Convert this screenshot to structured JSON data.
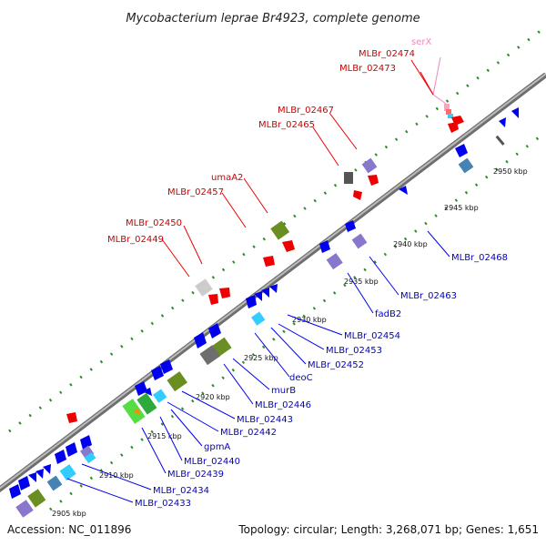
{
  "title": "Mycobacterium leprae Br4923, complete genome",
  "footer": {
    "accession": "Accession: NC_011896",
    "topology": "Topology: circular; Length: 3,268,071 bp; Genes: 1,651"
  },
  "colors": {
    "backbone": "#888888",
    "dots": "#2e8b2e",
    "forward_label": "#cc0000",
    "reverse_label": "#0000cc",
    "rna_label": "#ee88bb"
  },
  "scale": {
    "unit": "kbp",
    "ticks": [
      "2905 kbp",
      "2910 kbp",
      "2915 kbp",
      "2920 kbp",
      "2925 kbp",
      "2930 kbp",
      "2935 kbp",
      "2940 kbp",
      "2945 kbp",
      "2950 kbp"
    ]
  },
  "forward_labels": [
    "serX",
    "MLBr_02474",
    "MLBr_02473",
    "MLBr_02467",
    "MLBr_02465",
    "umaA2",
    "MLBr_02457",
    "MLBr_02450",
    "MLBr_02449"
  ],
  "reverse_labels": [
    "MLBr_02468",
    "MLBr_02463",
    "fadB2",
    "MLBr_02454",
    "MLBr_02453",
    "MLBr_02452",
    "deoC",
    "murB",
    "MLBr_02446",
    "MLBr_02443",
    "MLBr_02442",
    "gpmA",
    "MLBr_02440",
    "MLBr_02439",
    "MLBr_02434",
    "MLBr_02433"
  ]
}
